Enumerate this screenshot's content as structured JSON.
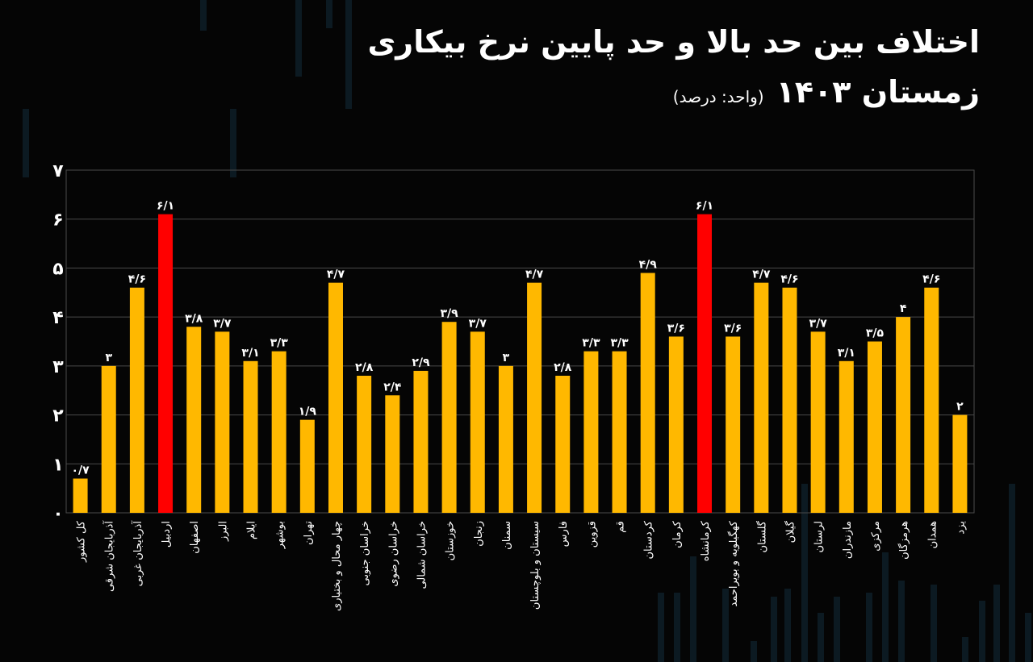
{
  "header": {
    "title": "اختلاف بین حد بالا و حد پایین نرخ بیکاری",
    "subtitle": "زمستان ۱۴۰۳",
    "unit": "(واحد: درصد)"
  },
  "colors": {
    "bar": "#FFB800",
    "highlight": "#FF0000",
    "grid": "#4a4a4a",
    "text": "#FFFFFF",
    "background": "#050505"
  },
  "chart_data": {
    "type": "bar",
    "title": "اختلاف بین حد بالا و حد پایین نرخ بیکاری",
    "subtitle": "زمستان ۱۴۰۳",
    "unit": "(واحد: درصد)",
    "ylim": [
      0,
      7
    ],
    "yticks": [
      0,
      1,
      2,
      3,
      4,
      5,
      6,
      7
    ],
    "ytick_labels": [
      "۰",
      "۱",
      "۲",
      "۳",
      "۴",
      "۵",
      "۶",
      "۷"
    ],
    "grid": true,
    "categories": [
      "کل کشور",
      "آذربایجان شرقی",
      "آذربایجان غربی",
      "اردبیل",
      "اصفهان",
      "البرز",
      "ایلام",
      "بوشهر",
      "تهران",
      "چهار محال و بختیاری",
      "خراسان جنوبی",
      "خراسان رضوی",
      "خراسان شمالی",
      "خوزستان",
      "زنجان",
      "سمنان",
      "سیستان و بلوچستان",
      "فارس",
      "قزوین",
      "قم",
      "کردستان",
      "کرمان",
      "کرمانشاه",
      "کهگیلویه و بویراحمد",
      "گلستان",
      "گیلان",
      "لرستان",
      "مازندران",
      "مرکزی",
      "هرمزگان",
      "همدان",
      "یزد"
    ],
    "values": [
      0.7,
      3,
      4.6,
      6.1,
      3.8,
      3.7,
      3.1,
      3.3,
      1.9,
      4.7,
      2.8,
      2.4,
      2.9,
      3.9,
      3.7,
      3,
      4.7,
      2.8,
      3.3,
      3.3,
      4.9,
      3.6,
      6.1,
      3.6,
      4.7,
      4.6,
      3.7,
      3.1,
      3.5,
      4,
      4.6,
      2
    ],
    "value_labels": [
      "۰/۷",
      "۳",
      "۴/۶",
      "۶/۱",
      "۳/۸",
      "۳/۷",
      "۳/۱",
      "۳/۳",
      "۱/۹",
      "۴/۷",
      "۲/۸",
      "۲/۴",
      "۲/۹",
      "۳/۹",
      "۳/۷",
      "۳",
      "۴/۷",
      "۲/۸",
      "۳/۳",
      "۳/۳",
      "۴/۹",
      "۳/۶",
      "۶/۱",
      "۳/۶",
      "۴/۷",
      "۴/۶",
      "۳/۷",
      "۳/۱",
      "۳/۵",
      "۴",
      "۴/۶",
      "۲"
    ],
    "highlighted": [
      "اردبیل",
      "کرمانشاه"
    ]
  }
}
